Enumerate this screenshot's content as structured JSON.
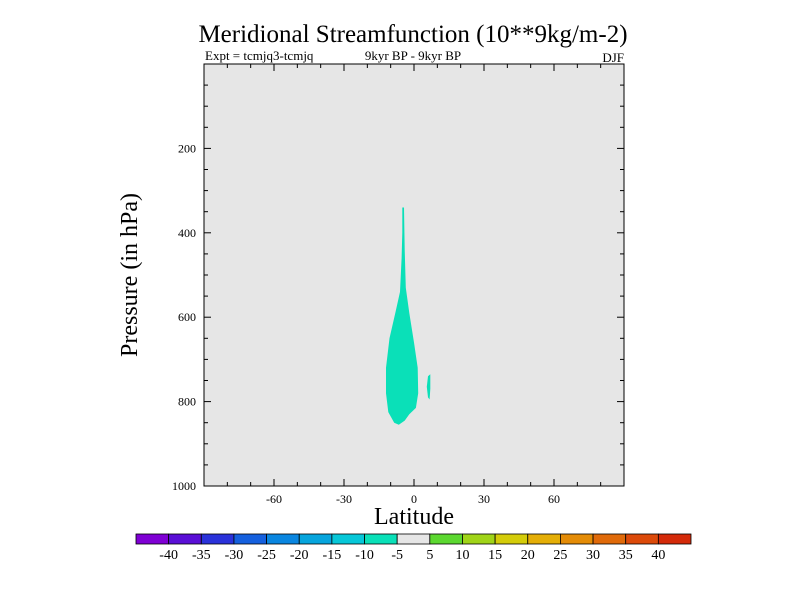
{
  "chart_data": {
    "type": "contour",
    "title": "Meridional Streamfunction (10**9kg/m-2)",
    "subtitle_left": "Expt = tcmjq3-tcmjq",
    "subtitle_center": "9kyr BP - 9kyr BP",
    "subtitle_right": "DJF",
    "xlabel": "Latitude",
    "ylabel": "Pressure (in hPa)",
    "xlim": [
      -90,
      90
    ],
    "ylim": [
      1000,
      0
    ],
    "xticks": [
      -60,
      -30,
      0,
      30,
      60
    ],
    "yticks": [
      200,
      400,
      600,
      800,
      1000
    ],
    "background_color": "#e6e6e6",
    "levels": [
      -40,
      -35,
      -30,
      -25,
      -20,
      -15,
      -10,
      -5,
      5,
      10,
      15,
      20,
      25,
      30,
      35,
      40
    ],
    "level_labels": [
      "-40",
      "-35",
      "-30",
      "-25",
      "-20",
      "-15",
      "-10",
      "-5",
      "5",
      "10",
      "15",
      "20",
      "25",
      "30",
      "35",
      "40"
    ],
    "colors": [
      "#7f00d4",
      "#5a0fd6",
      "#2a32da",
      "#1560de",
      "#0a86e0",
      "#07a5dd",
      "#07c7d8",
      "#0ae0b8",
      "#e6e6e6",
      "#5cd830",
      "#a0d418",
      "#d4cc0a",
      "#e4ae07",
      "#e48c07",
      "#e06a0a",
      "#dc4a0a",
      "#d42a0a"
    ],
    "filled_regions": [
      {
        "name": "plume",
        "interval": "-10 to -5",
        "color": "#0ae0b8",
        "points": [
          [
            -5,
            340
          ],
          [
            -4.3,
            340
          ],
          [
            -4,
            440
          ],
          [
            -3.5,
            530
          ],
          [
            -2,
            590
          ],
          [
            0,
            660
          ],
          [
            1.6,
            720
          ],
          [
            1.8,
            780
          ],
          [
            0.8,
            815
          ],
          [
            -2,
            830
          ],
          [
            -4,
            845
          ],
          [
            -6.5,
            855
          ],
          [
            -8.5,
            850
          ],
          [
            -11,
            825
          ],
          [
            -12,
            780
          ],
          [
            -12,
            720
          ],
          [
            -10.5,
            650
          ],
          [
            -8,
            590
          ],
          [
            -6,
            540
          ],
          [
            -5.3,
            460
          ],
          [
            -5,
            400
          ]
        ]
      },
      {
        "name": "sliver",
        "interval": "-10 to -5",
        "color": "#0ae0b8",
        "points": [
          [
            6,
            740
          ],
          [
            7,
            735
          ],
          [
            7,
            770
          ],
          [
            6.7,
            795
          ],
          [
            6,
            790
          ],
          [
            5.5,
            765
          ]
        ]
      }
    ]
  }
}
